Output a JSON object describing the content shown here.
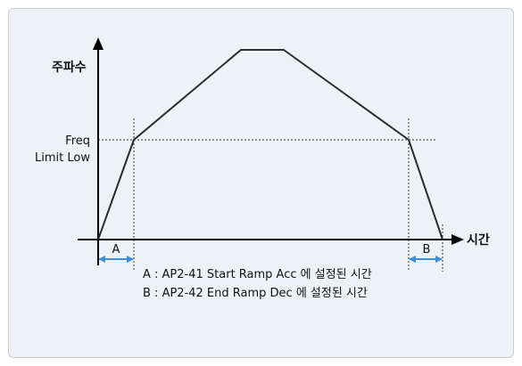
{
  "diagram": {
    "y_axis_label": "주파수",
    "x_axis_label": "시간",
    "freq_label_line1": "Freq",
    "freq_label_line2": "Limit Low",
    "marker_a": "A",
    "marker_b": "B",
    "legend_a": "A : AP2-41 Start Ramp Acc 에 설정된 시간",
    "legend_b": "B : AP2-42 End Ramp Dec 에 설정된 시간"
  },
  "colors": {
    "panel_background": "#eef2f7",
    "panel_border": "#c9cdd1",
    "curve": "#2b2b2b",
    "arrow": "#3a8fd6"
  }
}
